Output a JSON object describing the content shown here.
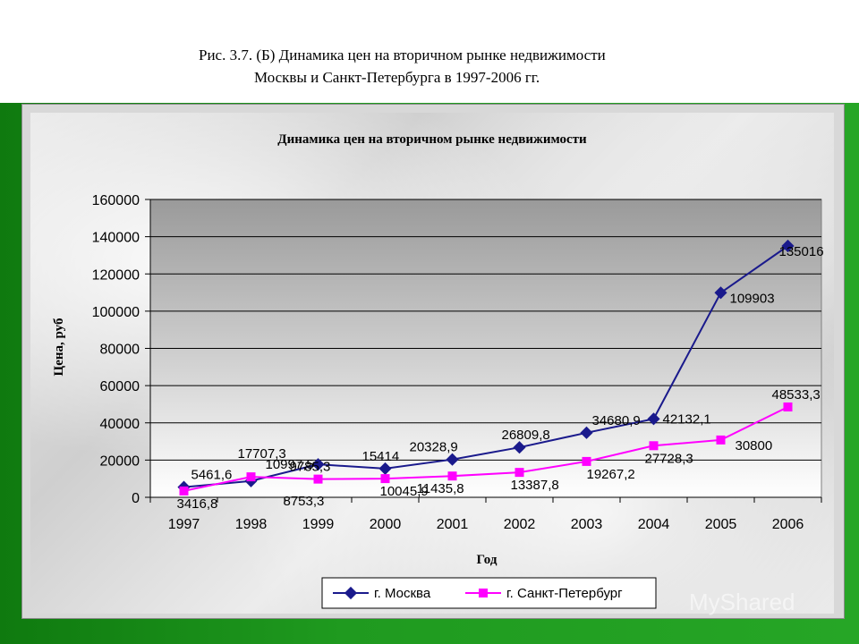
{
  "caption": {
    "line1": "Рис. 3.7. (Б) Динамика цен на вторичном рынке недвижимости",
    "line2": "Москвы и Санкт-Петербурга в 1997-2006 гг."
  },
  "watermark": "MyShared",
  "colors": {
    "moscow": "#1a1a8c",
    "spb": "#ff00ff"
  },
  "chart_data": {
    "type": "line",
    "title": "Динамика цен на вторичном рынке недвижимости",
    "xlabel": "Год",
    "ylabel": "Цена, руб",
    "categories": [
      "1997",
      "1998",
      "1999",
      "2000",
      "2001",
      "2002",
      "2003",
      "2004",
      "2005",
      "2006"
    ],
    "ylim": [
      0,
      160000
    ],
    "yticks": [
      "0",
      "20000",
      "40000",
      "60000",
      "80000",
      "100000",
      "120000",
      "140000",
      "160000"
    ],
    "grid": true,
    "legend": "bottom",
    "series": [
      {
        "name": "г. Москва",
        "values": [
          5461.6,
          8753.3,
          17707.3,
          15414,
          20328.9,
          26809.8,
          34680.9,
          42132.1,
          109903,
          135016
        ],
        "labels": [
          "5461,6",
          "8753,3",
          "17707,3",
          "15414",
          "20328,9",
          "26809,8",
          "34680,9",
          "42132,1",
          "109903",
          "135016"
        ]
      },
      {
        "name": "г. Санкт-Петербург",
        "values": [
          3416.8,
          10997.5,
          9785.3,
          10045.9,
          11435.8,
          13387.8,
          19267.2,
          27728.3,
          30800,
          48533.3
        ],
        "labels": [
          "3416,8",
          "10997,5",
          "9785,3",
          "10045,9",
          "11435,8",
          "13387,8",
          "19267,2",
          "27728,3",
          "30800",
          "48533,3"
        ]
      }
    ]
  }
}
